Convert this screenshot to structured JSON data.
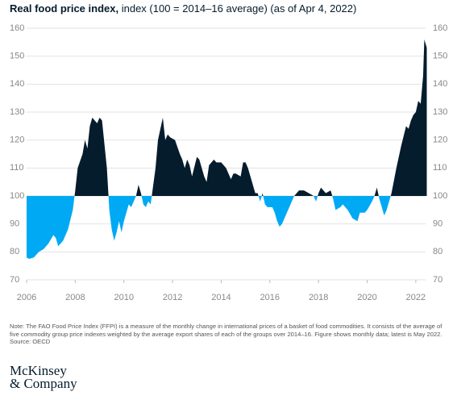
{
  "chart_data": {
    "type": "area",
    "title": "Real food price index,",
    "subtitle": "index (100 = 2014–16 average) (as of Apr 4, 2022)",
    "x": [
      2006.0,
      2006.1,
      2006.3,
      2006.5,
      2006.7,
      2006.9,
      2007.1,
      2007.2,
      2007.3,
      2007.5,
      2007.7,
      2007.9,
      2008.0,
      2008.1,
      2008.3,
      2008.4,
      2008.5,
      2008.6,
      2008.7,
      2008.8,
      2008.9,
      2009.0,
      2009.1,
      2009.3,
      2009.4,
      2009.5,
      2009.6,
      2009.7,
      2009.8,
      2009.9,
      2010.0,
      2010.2,
      2010.3,
      2010.5,
      2010.6,
      2010.7,
      2010.8,
      2010.9,
      2011.0,
      2011.1,
      2011.3,
      2011.4,
      2011.6,
      2011.65,
      2011.7,
      2011.8,
      2011.9,
      2012.1,
      2012.3,
      2012.4,
      2012.5,
      2012.6,
      2012.7,
      2012.8,
      2013.0,
      2013.1,
      2013.3,
      2013.4,
      2013.5,
      2013.7,
      2013.8,
      2014.0,
      2014.2,
      2014.4,
      2014.5,
      2014.6,
      2014.8,
      2014.9,
      2015.0,
      2015.1,
      2015.3,
      2015.4,
      2015.5,
      2015.6,
      2015.7,
      2015.8,
      2015.9,
      2016.1,
      2016.2,
      2016.3,
      2016.4,
      2016.5,
      2016.7,
      2016.9,
      2017.0,
      2017.2,
      2017.4,
      2017.6,
      2017.8,
      2017.9,
      2018.0,
      2018.1,
      2018.2,
      2018.3,
      2018.5,
      2018.6,
      2018.7,
      2018.9,
      2019.0,
      2019.2,
      2019.4,
      2019.6,
      2019.7,
      2019.9,
      2020.0,
      2020.2,
      2020.3,
      2020.4,
      2020.5,
      2020.6,
      2020.7,
      2020.8,
      2021.0,
      2021.2,
      2021.4,
      2021.6,
      2021.7,
      2021.8,
      2021.9,
      2022.0,
      2022.1,
      2022.2,
      2022.3,
      2022.35,
      2022.45
    ],
    "values": [
      78,
      77.5,
      78,
      80,
      81,
      83,
      86,
      85,
      82,
      84,
      88,
      95,
      102,
      110,
      115,
      120,
      117,
      125,
      128,
      127,
      126,
      128,
      127,
      110,
      95,
      88,
      84,
      87,
      91,
      87,
      91,
      97,
      96,
      100,
      104,
      101,
      97,
      96,
      98,
      97,
      110,
      120,
      128,
      124,
      120,
      122,
      121,
      120,
      115,
      113,
      110,
      113,
      111,
      107,
      114,
      113,
      107,
      105,
      111,
      113,
      112,
      112,
      110,
      106,
      108,
      108,
      107,
      112,
      112,
      110,
      104,
      101,
      101,
      98,
      101,
      97,
      96,
      96,
      94,
      91,
      89,
      90,
      94,
      98,
      100,
      102,
      102,
      101,
      100,
      98,
      101,
      103,
      102,
      101,
      102,
      99,
      95,
      96,
      97,
      95,
      92,
      91,
      94,
      94,
      95,
      98,
      100,
      103,
      99,
      96,
      93,
      95,
      101,
      110,
      118,
      125,
      124,
      127,
      129,
      130,
      134,
      133,
      143,
      156,
      153
    ],
    "baseline": 100,
    "color_above": "#051c2c",
    "color_below": "#00a9f4",
    "xlim": [
      2006,
      2022.5
    ],
    "xticks": [
      2006,
      2008,
      2010,
      2012,
      2014,
      2016,
      2018,
      2020,
      2022
    ],
    "ylim": [
      70,
      160
    ],
    "yticks": [
      70,
      80,
      90,
      100,
      110,
      120,
      130,
      140,
      150,
      160
    ],
    "grid": true,
    "note": "Note: The FAO Food Price Index (FFPI) is a measure of the monthly change in international prices of a basket of food commodities. It consists of the average of five commodity group price indexes weighted by the average export shares of each of the groups over 2014–16. Figure shows monthly data; latest is May 2022.",
    "source": "Source: OECD",
    "logo": [
      "McKinsey",
      "& Company"
    ]
  }
}
